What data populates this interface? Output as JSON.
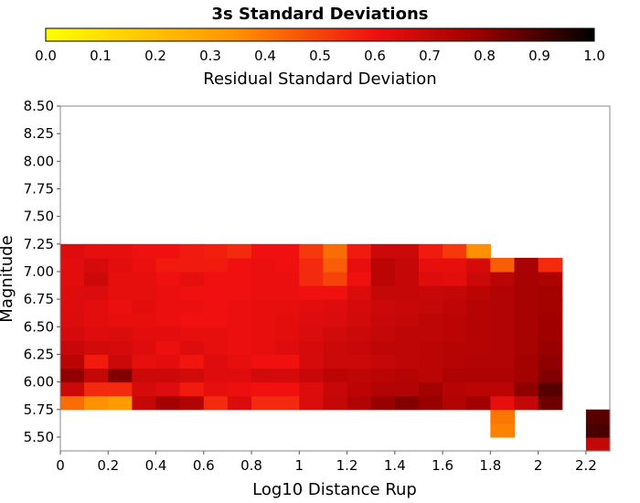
{
  "chart_data": {
    "type": "heatmap",
    "title": "3s Standard Deviations",
    "colorbar": {
      "label": "Residual Standard Deviation",
      "range": [
        0.0,
        1.0
      ],
      "ticks": [
        "0.0",
        "0.1",
        "0.2",
        "0.3",
        "0.4",
        "0.5",
        "0.6",
        "0.7",
        "0.8",
        "0.9",
        "1.0"
      ],
      "colormap": "hot (reversed)"
    },
    "xlabel": "Log10 Distance Rup",
    "ylabel": "Magnitude",
    "xlim": [
      0,
      2.3
    ],
    "ylim": [
      5.375,
      8.5
    ],
    "x_ticks": [
      "0",
      "0.2",
      "0.4",
      "0.6",
      "0.8",
      "1",
      "1.2",
      "1.4",
      "1.6",
      "1.8",
      "2",
      "2.2"
    ],
    "y_ticks": [
      "5.50",
      "5.75",
      "6.00",
      "6.25",
      "6.50",
      "6.75",
      "7.00",
      "7.25",
      "7.50",
      "7.75",
      "8.00",
      "8.25",
      "8.50"
    ],
    "x_bin_width": 0.1,
    "y_bin_height": 0.125,
    "x_bin_start": 0,
    "y_bin_start": 5.375,
    "grid": false,
    "colorbar_placement": "top",
    "values": [
      [
        null,
        null,
        null,
        null,
        null,
        null,
        null,
        null,
        null,
        null,
        null,
        null,
        null,
        null,
        null,
        null,
        null,
        null,
        null,
        null,
        null,
        null,
        0.7
      ],
      [
        null,
        null,
        null,
        null,
        null,
        null,
        null,
        null,
        null,
        null,
        null,
        null,
        null,
        null,
        null,
        null,
        null,
        null,
        0.38,
        null,
        null,
        null,
        0.9
      ],
      [
        null,
        null,
        null,
        null,
        null,
        null,
        null,
        null,
        null,
        null,
        null,
        null,
        null,
        null,
        null,
        null,
        null,
        null,
        0.4,
        null,
        null,
        null,
        0.88
      ],
      [
        0.42,
        0.35,
        0.32,
        0.7,
        0.77,
        0.74,
        0.55,
        0.65,
        0.55,
        0.55,
        0.65,
        0.7,
        0.74,
        0.79,
        0.82,
        0.79,
        0.74,
        0.78,
        0.62,
        0.7,
        0.85
      ],
      [
        0.68,
        0.55,
        0.55,
        0.66,
        0.64,
        0.58,
        0.62,
        0.61,
        0.6,
        0.6,
        0.65,
        0.69,
        0.72,
        0.74,
        0.74,
        0.77,
        0.73,
        0.72,
        0.72,
        0.8,
        0.88
      ],
      [
        0.8,
        0.7,
        0.82,
        0.68,
        0.68,
        0.67,
        0.64,
        0.64,
        0.67,
        0.66,
        0.69,
        0.72,
        0.71,
        0.72,
        0.73,
        0.72,
        0.75,
        0.75,
        0.75,
        0.77,
        0.82
      ],
      [
        0.72,
        0.58,
        0.68,
        0.62,
        0.63,
        0.59,
        0.64,
        0.62,
        0.6,
        0.6,
        0.66,
        0.68,
        0.68,
        0.7,
        0.71,
        0.72,
        0.73,
        0.74,
        0.74,
        0.77,
        0.8
      ],
      [
        0.69,
        0.67,
        0.66,
        0.64,
        0.61,
        0.64,
        0.62,
        0.61,
        0.62,
        0.64,
        0.66,
        0.68,
        0.69,
        0.71,
        0.71,
        0.72,
        0.73,
        0.73,
        0.74,
        0.76,
        0.79
      ],
      [
        0.66,
        0.64,
        0.65,
        0.63,
        0.63,
        0.62,
        0.62,
        0.61,
        0.62,
        0.63,
        0.65,
        0.67,
        0.68,
        0.7,
        0.71,
        0.71,
        0.72,
        0.73,
        0.74,
        0.76,
        0.78
      ],
      [
        0.65,
        0.63,
        0.62,
        0.62,
        0.61,
        0.6,
        0.6,
        0.61,
        0.62,
        0.63,
        0.64,
        0.65,
        0.67,
        0.69,
        0.7,
        0.71,
        0.72,
        0.73,
        0.74,
        0.76,
        0.78
      ],
      [
        0.64,
        0.63,
        0.61,
        0.63,
        0.61,
        0.61,
        0.6,
        0.61,
        0.62,
        0.62,
        0.63,
        0.64,
        0.66,
        0.68,
        0.69,
        0.7,
        0.71,
        0.73,
        0.74,
        0.76,
        0.77
      ],
      [
        0.64,
        0.65,
        0.62,
        0.62,
        0.61,
        0.6,
        0.6,
        0.6,
        0.61,
        0.61,
        0.6,
        0.6,
        0.65,
        0.7,
        0.7,
        0.69,
        0.7,
        0.72,
        0.74,
        0.76,
        0.77
      ],
      [
        0.63,
        0.68,
        0.62,
        0.62,
        0.6,
        0.62,
        0.6,
        0.6,
        0.61,
        0.61,
        0.55,
        0.5,
        0.6,
        0.72,
        0.7,
        0.64,
        0.63,
        0.68,
        0.72,
        0.76,
        0.75
      ],
      [
        0.63,
        0.66,
        0.63,
        0.61,
        0.58,
        0.58,
        0.58,
        0.6,
        0.61,
        0.6,
        0.55,
        0.45,
        0.62,
        0.72,
        0.7,
        0.62,
        0.62,
        0.66,
        0.45,
        0.76,
        0.55
      ],
      [
        0.64,
        0.62,
        0.62,
        0.6,
        0.6,
        0.58,
        0.57,
        0.55,
        0.6,
        0.6,
        0.52,
        0.42,
        0.58,
        0.68,
        0.68,
        0.58,
        0.52,
        0.35,
        null,
        null
      ]
    ]
  }
}
